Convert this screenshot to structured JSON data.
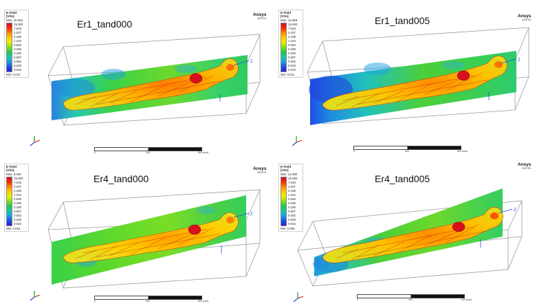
{
  "legend_colors": [
    "#c8102e",
    "#ff2a00",
    "#ff8a00",
    "#ffd000",
    "#e6f000",
    "#7dde1e",
    "#1fc74a",
    "#19c7a8",
    "#1aa0e6",
    "#1f4ee6",
    "#2a1fd0"
  ],
  "panels": [
    {
      "title": "Er1_tand000",
      "brand": "Ansys",
      "version": "2023 R1",
      "legend": {
        "title_line1": "E Field",
        "title_line2": "[V/m]",
        "max": "Max: 15.052",
        "min": "Min: 0.013",
        "ticks": [
          "15.000",
          "7.518",
          "4.037",
          "2.168",
          "1.164",
          "0.625",
          "0.336",
          "0.180",
          "0.097",
          "0.052",
          "0.028",
          "0.015"
        ]
      },
      "ruler": {
        "l0": "0",
        "l1": "400",
        "l2": "800 (mm)"
      }
    },
    {
      "title": "Er1_tand005",
      "brand": "Ansys",
      "version": "2023 R1",
      "legend": {
        "title_line1": "E Field",
        "title_line2": "[V/m]",
        "max": "Max: 12.969",
        "min": "Min: 0.011",
        "ticks": [
          "15.000",
          "7.518",
          "4.037",
          "2.168",
          "1.164",
          "0.625",
          "0.336",
          "0.180",
          "0.097",
          "0.052",
          "0.028",
          "0.015"
        ]
      },
      "ruler": {
        "l0": "0",
        "l1": "400",
        "l2": "800 (mm)"
      }
    },
    {
      "title": "Er4_tand000",
      "brand": "Ansys",
      "version": "2023 R1",
      "legend": {
        "title_line1": "E Field",
        "title_line2": "[V/m]",
        "max": "Max: 9.292",
        "min": "Min: 0.024",
        "ticks": [
          "15.000",
          "7.518",
          "4.037",
          "2.168",
          "1.164",
          "0.625",
          "0.336",
          "0.180",
          "0.097",
          "0.052",
          "0.028",
          "0.015"
        ]
      },
      "ruler": {
        "l0": "0",
        "l1": "400",
        "l2": "800 (mm)"
      }
    },
    {
      "title": "Er4_tand005",
      "brand": "Ansys",
      "version": "2023 R1",
      "legend": {
        "title_line1": "E Field",
        "title_line2": "[V/m]",
        "max": "Max: 13.490",
        "min": "Min: 0.005",
        "ticks": [
          "15.000",
          "7.518",
          "4.037",
          "2.168",
          "1.164",
          "0.625",
          "0.336",
          "0.180",
          "0.097",
          "0.052",
          "0.028",
          "0.015"
        ]
      },
      "ruler": {
        "l0": "0",
        "l1": "400",
        "l2": "800 (mm)"
      }
    }
  ]
}
